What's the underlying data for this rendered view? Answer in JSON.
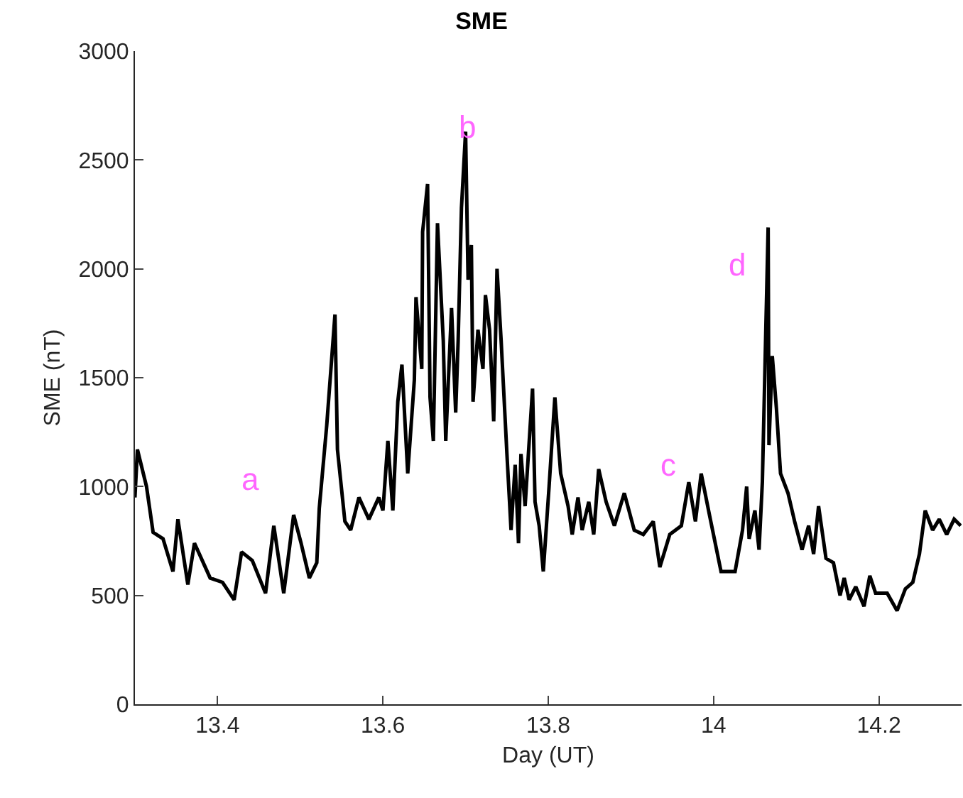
{
  "chart_data": {
    "type": "line",
    "title": "SME",
    "xlabel": "Day (UT)",
    "ylabel": "SME (nT)",
    "xlim": [
      13.3,
      14.3
    ],
    "xticks": [
      13.4,
      13.6,
      13.8,
      14,
      14.2
    ],
    "ylim": [
      0,
      3000
    ],
    "yticks": [
      0,
      500,
      1000,
      1500,
      2000,
      2500,
      3000
    ],
    "marker": "none",
    "line_style": "solid",
    "x": [
      13.3,
      13.303,
      13.314,
      13.322,
      13.334,
      13.346,
      13.352,
      13.364,
      13.372,
      13.391,
      13.406,
      13.42,
      13.429,
      13.442,
      13.458,
      13.468,
      13.48,
      13.492,
      13.501,
      13.511,
      13.52,
      13.523,
      13.532,
      13.542,
      13.545,
      13.554,
      13.561,
      13.571,
      13.583,
      13.595,
      13.6,
      13.606,
      13.612,
      13.618,
      13.623,
      13.63,
      13.638,
      13.64,
      13.647,
      13.648,
      13.654,
      13.657,
      13.661,
      13.666,
      13.673,
      13.676,
      13.683,
      13.688,
      13.691,
      13.695,
      13.7,
      13.703,
      13.707,
      13.709,
      13.715,
      13.721,
      13.724,
      13.729,
      13.734,
      13.738,
      13.743,
      13.75,
      13.755,
      13.76,
      13.764,
      13.767,
      13.772,
      13.781,
      13.784,
      13.789,
      13.794,
      13.801,
      13.808,
      13.815,
      13.824,
      13.829,
      13.836,
      13.841,
      13.849,
      13.855,
      13.861,
      13.87,
      13.88,
      13.892,
      13.904,
      13.915,
      13.927,
      13.935,
      13.947,
      13.961,
      13.97,
      13.978,
      13.985,
      13.995,
      14.009,
      14.026,
      14.035,
      14.04,
      14.043,
      14.05,
      14.055,
      14.059,
      14.066,
      14.067,
      14.071,
      14.076,
      14.081,
      14.09,
      14.098,
      14.107,
      14.115,
      14.121,
      14.127,
      14.136,
      14.145,
      14.153,
      14.158,
      14.164,
      14.172,
      14.182,
      14.189,
      14.196,
      14.21,
      14.222,
      14.232,
      14.241,
      14.249,
      14.256,
      14.265,
      14.273,
      14.282,
      14.291,
      14.299
    ],
    "series": [
      {
        "color": "#000000",
        "values": [
          950,
          1170,
          1000,
          790,
          760,
          610,
          850,
          550,
          740,
          580,
          560,
          480,
          700,
          660,
          510,
          820,
          510,
          870,
          740,
          580,
          650,
          900,
          1280,
          1790,
          1170,
          840,
          800,
          950,
          850,
          950,
          890,
          1210,
          890,
          1390,
          1560,
          1060,
          1490,
          1870,
          1540,
          2170,
          2390,
          1410,
          1210,
          2210,
          1670,
          1210,
          1820,
          1340,
          1670,
          2280,
          2630,
          1950,
          2110,
          1390,
          1720,
          1540,
          1880,
          1720,
          1300,
          2000,
          1670,
          1150,
          800,
          1100,
          740,
          1150,
          910,
          1450,
          930,
          820,
          610,
          1000,
          1410,
          1060,
          910,
          780,
          950,
          800,
          930,
          780,
          1080,
          930,
          820,
          970,
          800,
          780,
          840,
          630,
          780,
          820,
          1020,
          840,
          1060,
          870,
          610,
          610,
          800,
          1000,
          760,
          890,
          710,
          1020,
          2190,
          1190,
          1600,
          1360,
          1060,
          970,
          840,
          710,
          820,
          690,
          910,
          670,
          650,
          500,
          580,
          480,
          540,
          450,
          590,
          510,
          510,
          430,
          530,
          560,
          690,
          890,
          800,
          850,
          780,
          850,
          820
        ]
      }
    ],
    "annotations": [
      "a",
      "b",
      "c",
      "d"
    ]
  }
}
